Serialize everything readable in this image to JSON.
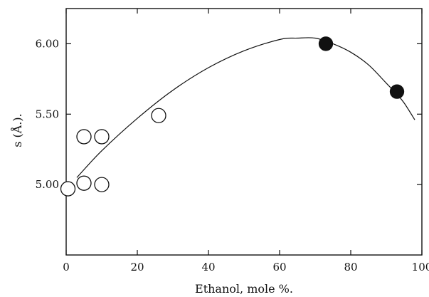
{
  "chart_data": {
    "type": "scatter",
    "title": "",
    "xlabel": "Ethanol, mole %.",
    "ylabel": "s (Å.).",
    "xlim": [
      0,
      100
    ],
    "ylim": [
      4.5,
      6.25
    ],
    "x_ticks": [
      0,
      20,
      40,
      60,
      80,
      100
    ],
    "x_tick_labels": [
      "0",
      "20",
      "40",
      "60",
      "80",
      "100"
    ],
    "y_ticks": [
      5.0,
      5.5,
      6.0
    ],
    "y_tick_labels": [
      "5.00",
      "5.50",
      "6.00"
    ],
    "grid": false,
    "series": [
      {
        "marker": "open-circle",
        "x": [
          0.5,
          5,
          10,
          5,
          10,
          26
        ],
        "y": [
          4.97,
          5.01,
          5.0,
          5.34,
          5.34,
          5.49
        ]
      },
      {
        "marker": "filled-circle",
        "x": [
          73,
          93
        ],
        "y": [
          6.0,
          5.66
        ]
      }
    ],
    "fit_curve": {
      "x": [
        3,
        10,
        20,
        30,
        40,
        50,
        60,
        65,
        70,
        75,
        80,
        85,
        90,
        93,
        95,
        98
      ],
      "y": [
        5.05,
        5.24,
        5.47,
        5.67,
        5.83,
        5.95,
        6.03,
        6.04,
        6.04,
        6.0,
        5.94,
        5.85,
        5.72,
        5.64,
        5.58,
        5.46
      ]
    }
  }
}
